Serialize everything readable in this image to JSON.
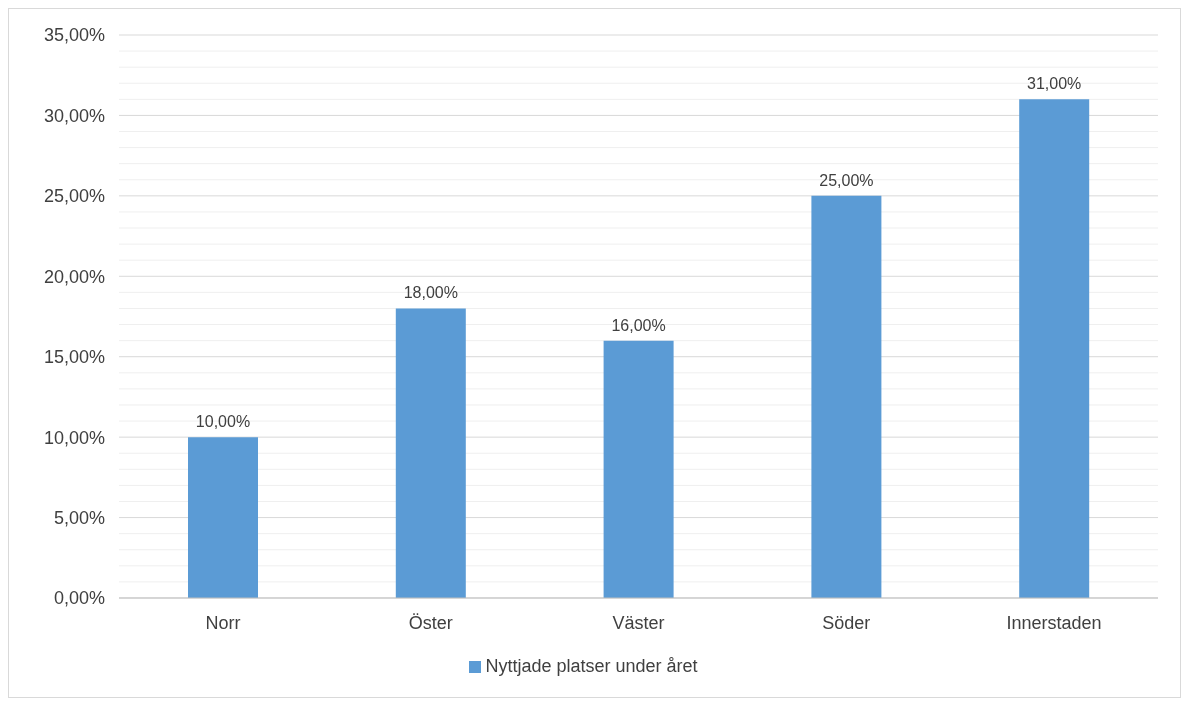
{
  "chart_data": {
    "type": "bar",
    "categories": [
      "Norr",
      "Öster",
      "Väster",
      "Söder",
      "Innerstaden"
    ],
    "series": [
      {
        "name": "Nyttjade platser under året",
        "color": "#5b9bd5",
        "values": [
          10,
          18,
          16,
          25,
          31
        ],
        "value_labels": [
          "10,00%",
          "18,00%",
          "16,00%",
          "25,00%",
          "31,00%"
        ]
      }
    ],
    "ylim": [
      0,
      35
    ],
    "yticks": [
      {
        "value": 0,
        "label": "0,00%"
      },
      {
        "value": 1,
        "label": null
      },
      {
        "value": 2,
        "label": null
      },
      {
        "value": 3,
        "label": null
      },
      {
        "value": 4,
        "label": null
      },
      {
        "value": 5,
        "label": "5,00%"
      },
      {
        "value": 6,
        "label": null
      },
      {
        "value": 7,
        "label": null
      },
      {
        "value": 8,
        "label": null
      },
      {
        "value": 9,
        "label": null
      },
      {
        "value": 10,
        "label": "10,00%"
      },
      {
        "value": 11,
        "label": null
      },
      {
        "value": 12,
        "label": null
      },
      {
        "value": 13,
        "label": null
      },
      {
        "value": 14,
        "label": null
      },
      {
        "value": 15,
        "label": "15,00%"
      },
      {
        "value": 16,
        "label": null
      },
      {
        "value": 17,
        "label": null
      },
      {
        "value": 18,
        "label": null
      },
      {
        "value": 19,
        "label": null
      },
      {
        "value": 20,
        "label": "20,00%"
      },
      {
        "value": 21,
        "label": null
      },
      {
        "value": 22,
        "label": null
      },
      {
        "value": 23,
        "label": null
      },
      {
        "value": 24,
        "label": null
      },
      {
        "value": 25,
        "label": "25,00%"
      },
      {
        "value": 26,
        "label": null
      },
      {
        "value": 27,
        "label": null
      },
      {
        "value": 28,
        "label": null
      },
      {
        "value": 29,
        "label": null
      },
      {
        "value": 30,
        "label": "30,00%"
      },
      {
        "value": 31,
        "label": null
      },
      {
        "value": 32,
        "label": null
      },
      {
        "value": 33,
        "label": null
      },
      {
        "value": 34,
        "label": null
      },
      {
        "value": 35,
        "label": "35,00%"
      }
    ],
    "grid": "y",
    "legend": "bottom"
  }
}
